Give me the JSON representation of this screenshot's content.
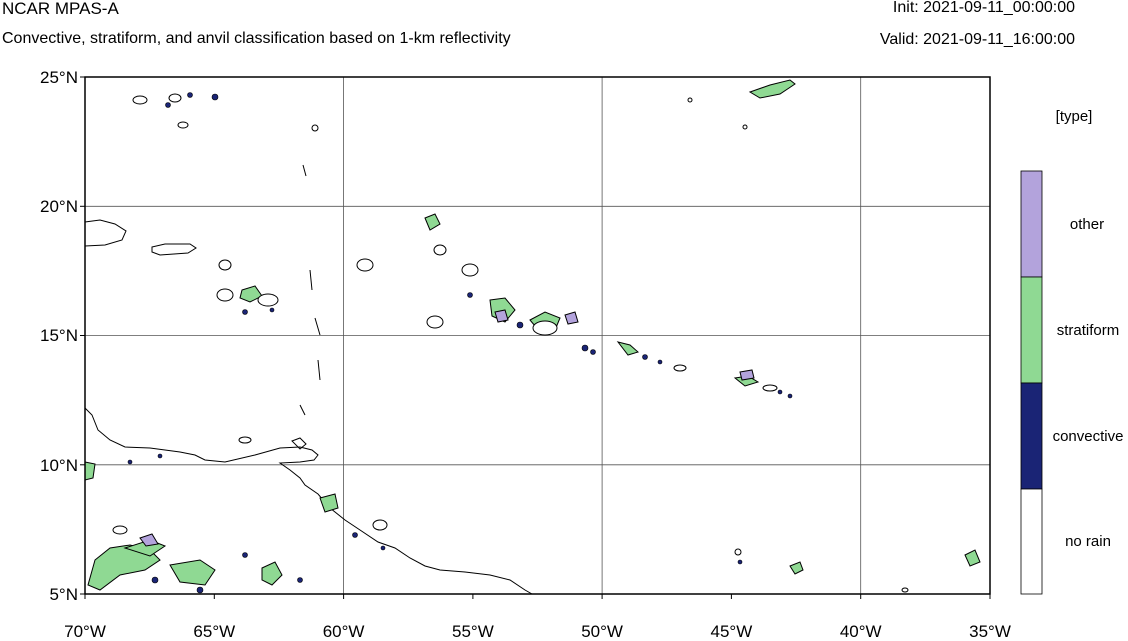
{
  "header": {
    "title": "NCAR MPAS-A",
    "subtitle": "Convective, stratiform, and anvil classification based on 1-km reflectivity",
    "init": "Init: 2021-09-11_00:00:00",
    "valid": "Valid: 2021-09-11_16:00:00"
  },
  "map": {
    "lon_labels": [
      "70°W",
      "65°W",
      "60°W",
      "55°W",
      "50°W",
      "45°W",
      "40°W",
      "35°W"
    ],
    "lat_labels": [
      "25°N",
      "20°N",
      "15°N",
      "10°N",
      "5°N"
    ],
    "lon_range": [
      -70,
      -35
    ],
    "lat_range": [
      5,
      25
    ],
    "grid": true
  },
  "legend": {
    "title": "[type]",
    "items": [
      {
        "label": "other",
        "color": "#b3a3dc"
      },
      {
        "label": "stratiform",
        "color": "#8fd993"
      },
      {
        "label": "convective",
        "color": "#1a2475"
      },
      {
        "label": "no rain",
        "color": "#ffffff"
      }
    ]
  },
  "colors": {
    "convective": "#1a2475",
    "stratiform": "#8fd993",
    "other": "#b3a3dc",
    "grid": "#555555"
  }
}
